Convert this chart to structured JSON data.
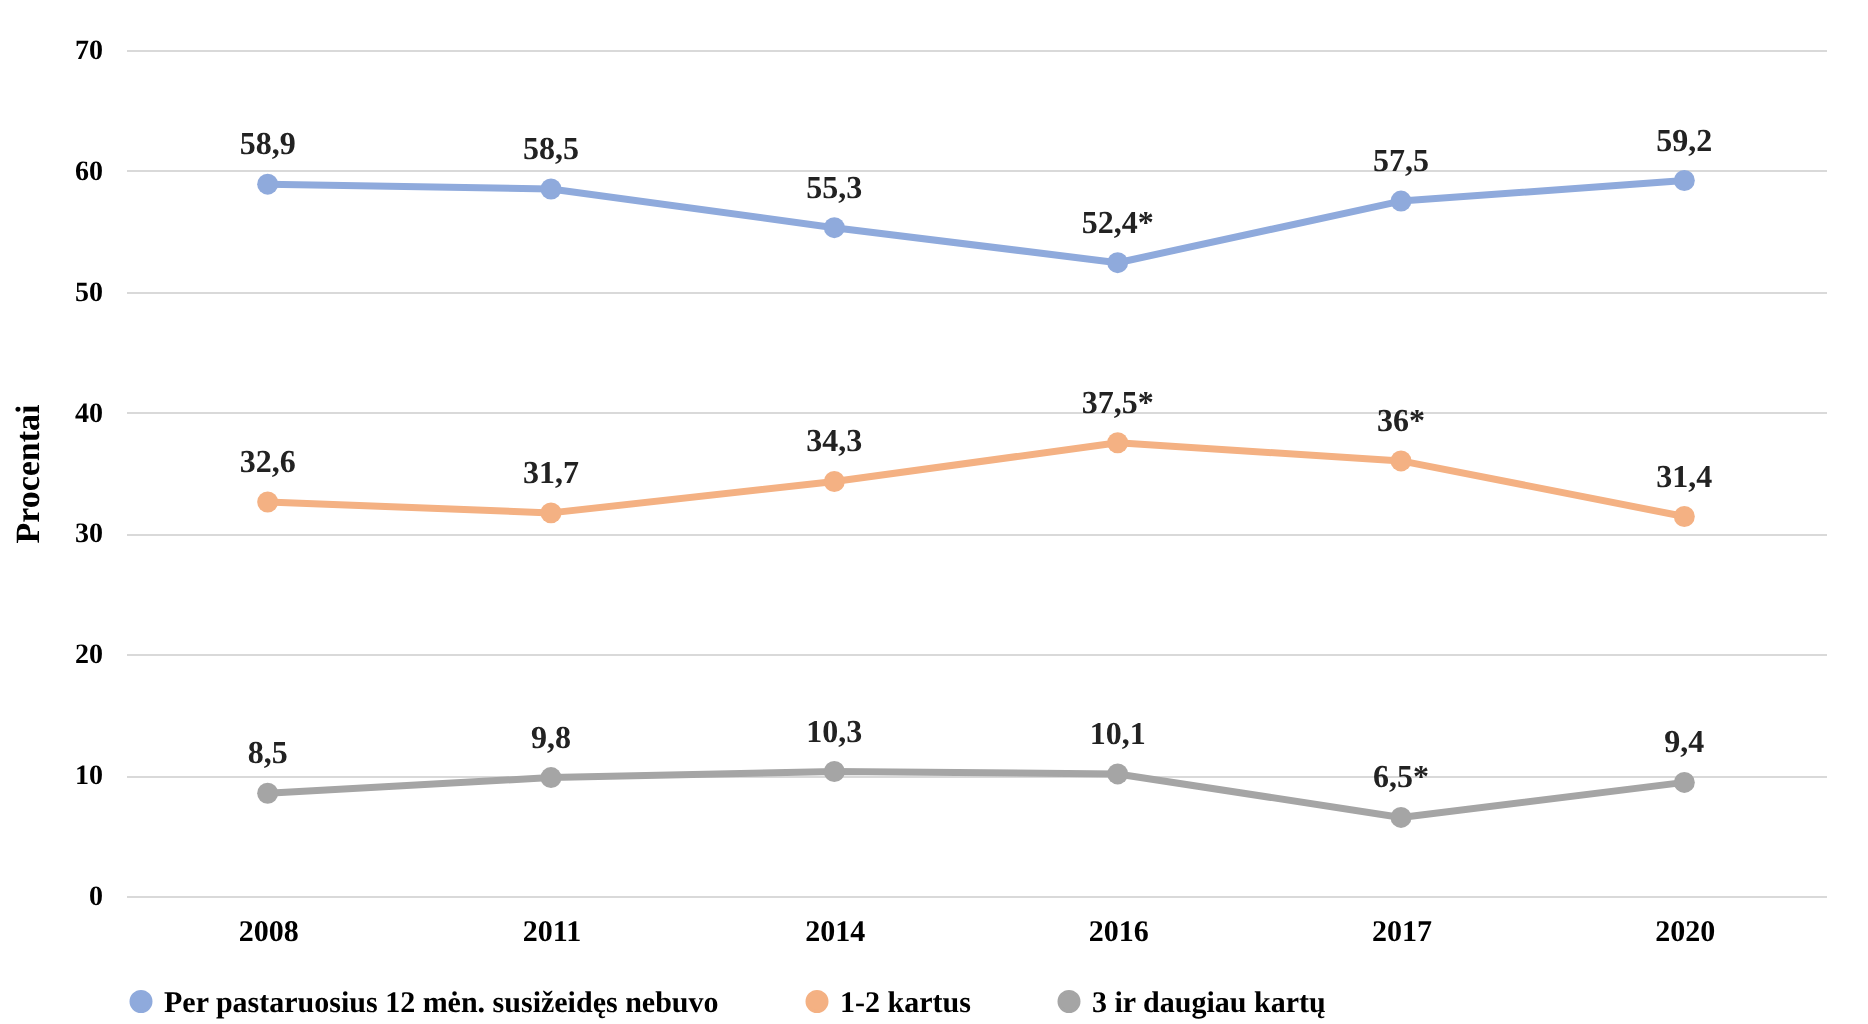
{
  "chart_data": {
    "type": "line",
    "ylabel": "Procentai",
    "categories": [
      "2008",
      "2011",
      "2014",
      "2016",
      "2017",
      "2020"
    ],
    "ylim": [
      0,
      70
    ],
    "yticks": [
      0,
      10,
      20,
      30,
      40,
      50,
      60,
      70
    ],
    "grid": "y",
    "legend": "bottom",
    "marker": "circle",
    "line_style": "solid",
    "series": [
      {
        "name": "Per pastaruosius 12 mėn. susižeidęs nebuvo",
        "color": "#8faadc",
        "values": [
          58.9,
          58.5,
          55.3,
          52.4,
          57.5,
          59.2
        ],
        "value_labels": [
          "58,9",
          "58,5",
          "55,3",
          "52,4*",
          "57,5",
          "59,2"
        ]
      },
      {
        "name": "1-2 kartus",
        "color": "#f4b183",
        "values": [
          32.6,
          31.7,
          34.3,
          37.5,
          36,
          31.4
        ],
        "value_labels": [
          "32,6",
          "31,7",
          "34,3",
          "37,5*",
          "36*",
          "31,4"
        ]
      },
      {
        "name": "3 ir daugiau kartų",
        "color": "#a5a5a5",
        "values": [
          8.5,
          9.8,
          10.3,
          10.1,
          6.5,
          9.4
        ],
        "value_labels": [
          "8,5",
          "9,8",
          "10,3",
          "10,1",
          "6,5*",
          "9,4"
        ]
      }
    ]
  }
}
